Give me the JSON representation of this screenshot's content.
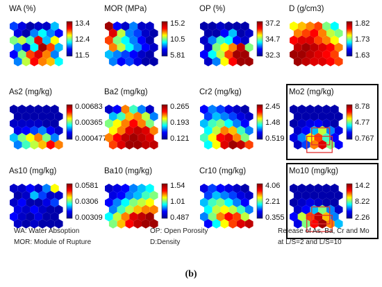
{
  "caption": "(b)",
  "legend": {
    "wa": "WA: Water Absoption",
    "mor": "MOR: Module of Rupture",
    "op": "OP: Open Porosity",
    "d": "D:Density",
    "release_1": "Release of As, Ba, Cr and Mo",
    "release_2": "at L/S=2 and L/S=10"
  },
  "maps": [
    {
      "label": "WA (%)",
      "ticks": [
        "13.4",
        "12.4",
        "11.5"
      ],
      "highlight": false,
      "cells": [
        0.25,
        0.15,
        0.05,
        0.1,
        0.1,
        0.35,
        0.15,
        0.05,
        0.3,
        0.4,
        0.3,
        0.2,
        0.5,
        0.55,
        0.45,
        0.85,
        0.35,
        0.6,
        0.3,
        0.15,
        0.4,
        0.95,
        0.75,
        0.35,
        0.2,
        0.5,
        0.75,
        0.85,
        0.7,
        0.3,
        0.3,
        0.55,
        0.8,
        0.7,
        0.65,
        0.4
      ]
    },
    {
      "label": "MOR (MPa)",
      "ticks": [
        "15.2",
        "10.5",
        "5.81"
      ],
      "highlight": false,
      "cells": [
        0.95,
        0.2,
        0.1,
        0.3,
        0.1,
        0.1,
        0.85,
        0.55,
        0.3,
        0.25,
        0.1,
        0.05,
        0.75,
        0.5,
        0.4,
        0.3,
        0.2,
        0.05,
        0.7,
        0.55,
        0.4,
        0.3,
        0.2,
        0.1,
        0.35,
        0.3,
        0.25,
        0.2,
        0.1,
        0.05,
        0.3,
        0.2,
        0.25,
        0.15,
        0.05,
        0.05
      ]
    },
    {
      "label": "OP (%)",
      "ticks": [
        "37.2",
        "34.7",
        "32.3"
      ],
      "highlight": false,
      "cells": [
        0.05,
        0.05,
        0.1,
        0.05,
        0.05,
        0.05,
        0.05,
        0.05,
        0.2,
        0.35,
        0.05,
        0.1,
        0.1,
        0.3,
        0.45,
        0.4,
        0.2,
        0.1,
        0.1,
        0.5,
        0.6,
        0.7,
        0.9,
        0.5,
        0.2,
        0.4,
        0.55,
        0.75,
        0.95,
        0.95,
        0.1,
        0.3,
        0.6,
        0.8,
        0.95,
        0.95
      ]
    },
    {
      "label": "D (g/cm3)",
      "ticks": [
        "1.82",
        "1.73",
        "1.63"
      ],
      "highlight": false,
      "cells": [
        0.6,
        0.65,
        0.7,
        0.75,
        0.5,
        0.4,
        0.7,
        0.75,
        0.8,
        0.7,
        0.55,
        0.5,
        0.8,
        0.85,
        0.85,
        0.75,
        0.7,
        0.6,
        0.9,
        0.95,
        0.9,
        0.85,
        0.8,
        0.7,
        0.95,
        0.95,
        0.9,
        0.85,
        0.8,
        0.75,
        0.95,
        0.9,
        0.85,
        0.85,
        0.8,
        0.75
      ]
    },
    {
      "label": "As2 (mg/kg)",
      "ticks": [
        "0.00683",
        "0.00365",
        "0.000477"
      ],
      "highlight": false,
      "cells": [
        0.05,
        0.05,
        0.05,
        0.05,
        0.05,
        0.05,
        0.05,
        0.05,
        0.05,
        0.05,
        0.05,
        0.05,
        0.1,
        0.1,
        0.1,
        0.1,
        0.05,
        0.05,
        0.15,
        0.2,
        0.25,
        0.3,
        0.2,
        0.1,
        0.35,
        0.5,
        0.6,
        0.7,
        0.5,
        0.3,
        0.3,
        0.45,
        0.55,
        0.65,
        0.8,
        0.7
      ]
    },
    {
      "label": "Ba2 (mg/kg)",
      "ticks": [
        "0.265",
        "0.193",
        "0.121"
      ],
      "highlight": false,
      "cells": [
        0.1,
        0.2,
        0.7,
        0.45,
        0.3,
        0.1,
        0.35,
        0.45,
        0.65,
        0.7,
        0.55,
        0.3,
        0.5,
        0.6,
        0.7,
        0.8,
        0.7,
        0.5,
        0.6,
        0.7,
        0.85,
        0.9,
        0.85,
        0.7,
        0.7,
        0.8,
        0.9,
        0.95,
        0.9,
        0.85,
        0.75,
        0.85,
        0.95,
        0.95,
        0.9,
        0.9
      ]
    },
    {
      "label": "Cr2 (mg/kg)",
      "ticks": [
        "2.45",
        "1.48",
        "0.519"
      ],
      "highlight": false,
      "cells": [
        0.2,
        0.3,
        0.25,
        0.15,
        0.1,
        0.05,
        0.25,
        0.35,
        0.3,
        0.25,
        0.15,
        0.1,
        0.35,
        0.45,
        0.5,
        0.4,
        0.3,
        0.2,
        0.4,
        0.55,
        0.7,
        0.65,
        0.45,
        0.3,
        0.45,
        0.6,
        0.8,
        0.85,
        0.7,
        0.5,
        0.4,
        0.6,
        0.85,
        0.95,
        0.9,
        0.75
      ]
    },
    {
      "label": "Mo2 (mg/kg)",
      "ticks": [
        "8.78",
        "4.77",
        "0.767"
      ],
      "highlight": true,
      "cells": [
        0.05,
        0.05,
        0.05,
        0.05,
        0.05,
        0.05,
        0.05,
        0.05,
        0.05,
        0.05,
        0.05,
        0.05,
        0.05,
        0.1,
        0.15,
        0.2,
        0.1,
        0.05,
        0.1,
        0.2,
        0.35,
        0.55,
        0.3,
        0.15,
        0.15,
        0.3,
        0.6,
        0.75,
        0.45,
        0.2,
        0.1,
        0.25,
        0.7,
        0.85,
        0.5,
        0.2
      ]
    },
    {
      "label": "As10 (mg/kg)",
      "ticks": [
        "0.0581",
        "0.0306",
        "0.00309"
      ],
      "highlight": false,
      "cells": [
        0.1,
        0.1,
        0.2,
        0.1,
        0.3,
        0.6,
        0.05,
        0.1,
        0.35,
        0.25,
        0.1,
        0.1,
        0.1,
        0.2,
        0.05,
        0.05,
        0.15,
        0.25,
        0.15,
        0.1,
        0.2,
        0.1,
        0.05,
        0.05,
        0.2,
        0.1,
        0.05,
        0.15,
        0.05,
        0.05,
        0.1,
        0.05,
        0.1,
        0.05,
        0.05,
        0.05
      ]
    },
    {
      "label": "Ba10 (mg/kg)",
      "ticks": [
        "1.54",
        "1.01",
        "0.487"
      ],
      "highlight": false,
      "cells": [
        0.1,
        0.15,
        0.2,
        0.3,
        0.35,
        0.4,
        0.15,
        0.2,
        0.3,
        0.35,
        0.45,
        0.5,
        0.2,
        0.3,
        0.4,
        0.5,
        0.55,
        0.6,
        0.3,
        0.45,
        0.55,
        0.65,
        0.7,
        0.7,
        0.4,
        0.55,
        0.7,
        0.85,
        0.9,
        0.95,
        0.5,
        0.65,
        0.8,
        0.9,
        0.95,
        0.95
      ]
    },
    {
      "label": "Cr10 (mg/kg)",
      "ticks": [
        "4.06",
        "2.21",
        "0.355"
      ],
      "highlight": false,
      "cells": [
        0.15,
        0.25,
        0.2,
        0.15,
        0.1,
        0.05,
        0.25,
        0.35,
        0.3,
        0.25,
        0.15,
        0.1,
        0.35,
        0.45,
        0.5,
        0.4,
        0.3,
        0.2,
        0.4,
        0.55,
        0.6,
        0.55,
        0.45,
        0.3,
        0.3,
        0.5,
        0.7,
        0.8,
        0.75,
        0.55,
        0.2,
        0.4,
        0.6,
        0.75,
        0.85,
        0.9
      ]
    },
    {
      "label": "Mo10 (mg/kg)",
      "ticks": [
        "14.2",
        "8.22",
        "2.26"
      ],
      "highlight": true,
      "cells": [
        0.05,
        0.05,
        0.05,
        0.05,
        0.05,
        0.05,
        0.05,
        0.05,
        0.05,
        0.05,
        0.05,
        0.05,
        0.05,
        0.1,
        0.15,
        0.1,
        0.05,
        0.05,
        0.1,
        0.2,
        0.35,
        0.5,
        0.3,
        0.1,
        0.2,
        0.55,
        0.75,
        0.9,
        0.65,
        0.3,
        0.15,
        0.5,
        0.8,
        0.95,
        0.7,
        0.35
      ]
    }
  ],
  "colorscale": [
    "#00008f",
    "#0000ff",
    "#00ffff",
    "#ffff00",
    "#ff0000",
    "#800000"
  ]
}
